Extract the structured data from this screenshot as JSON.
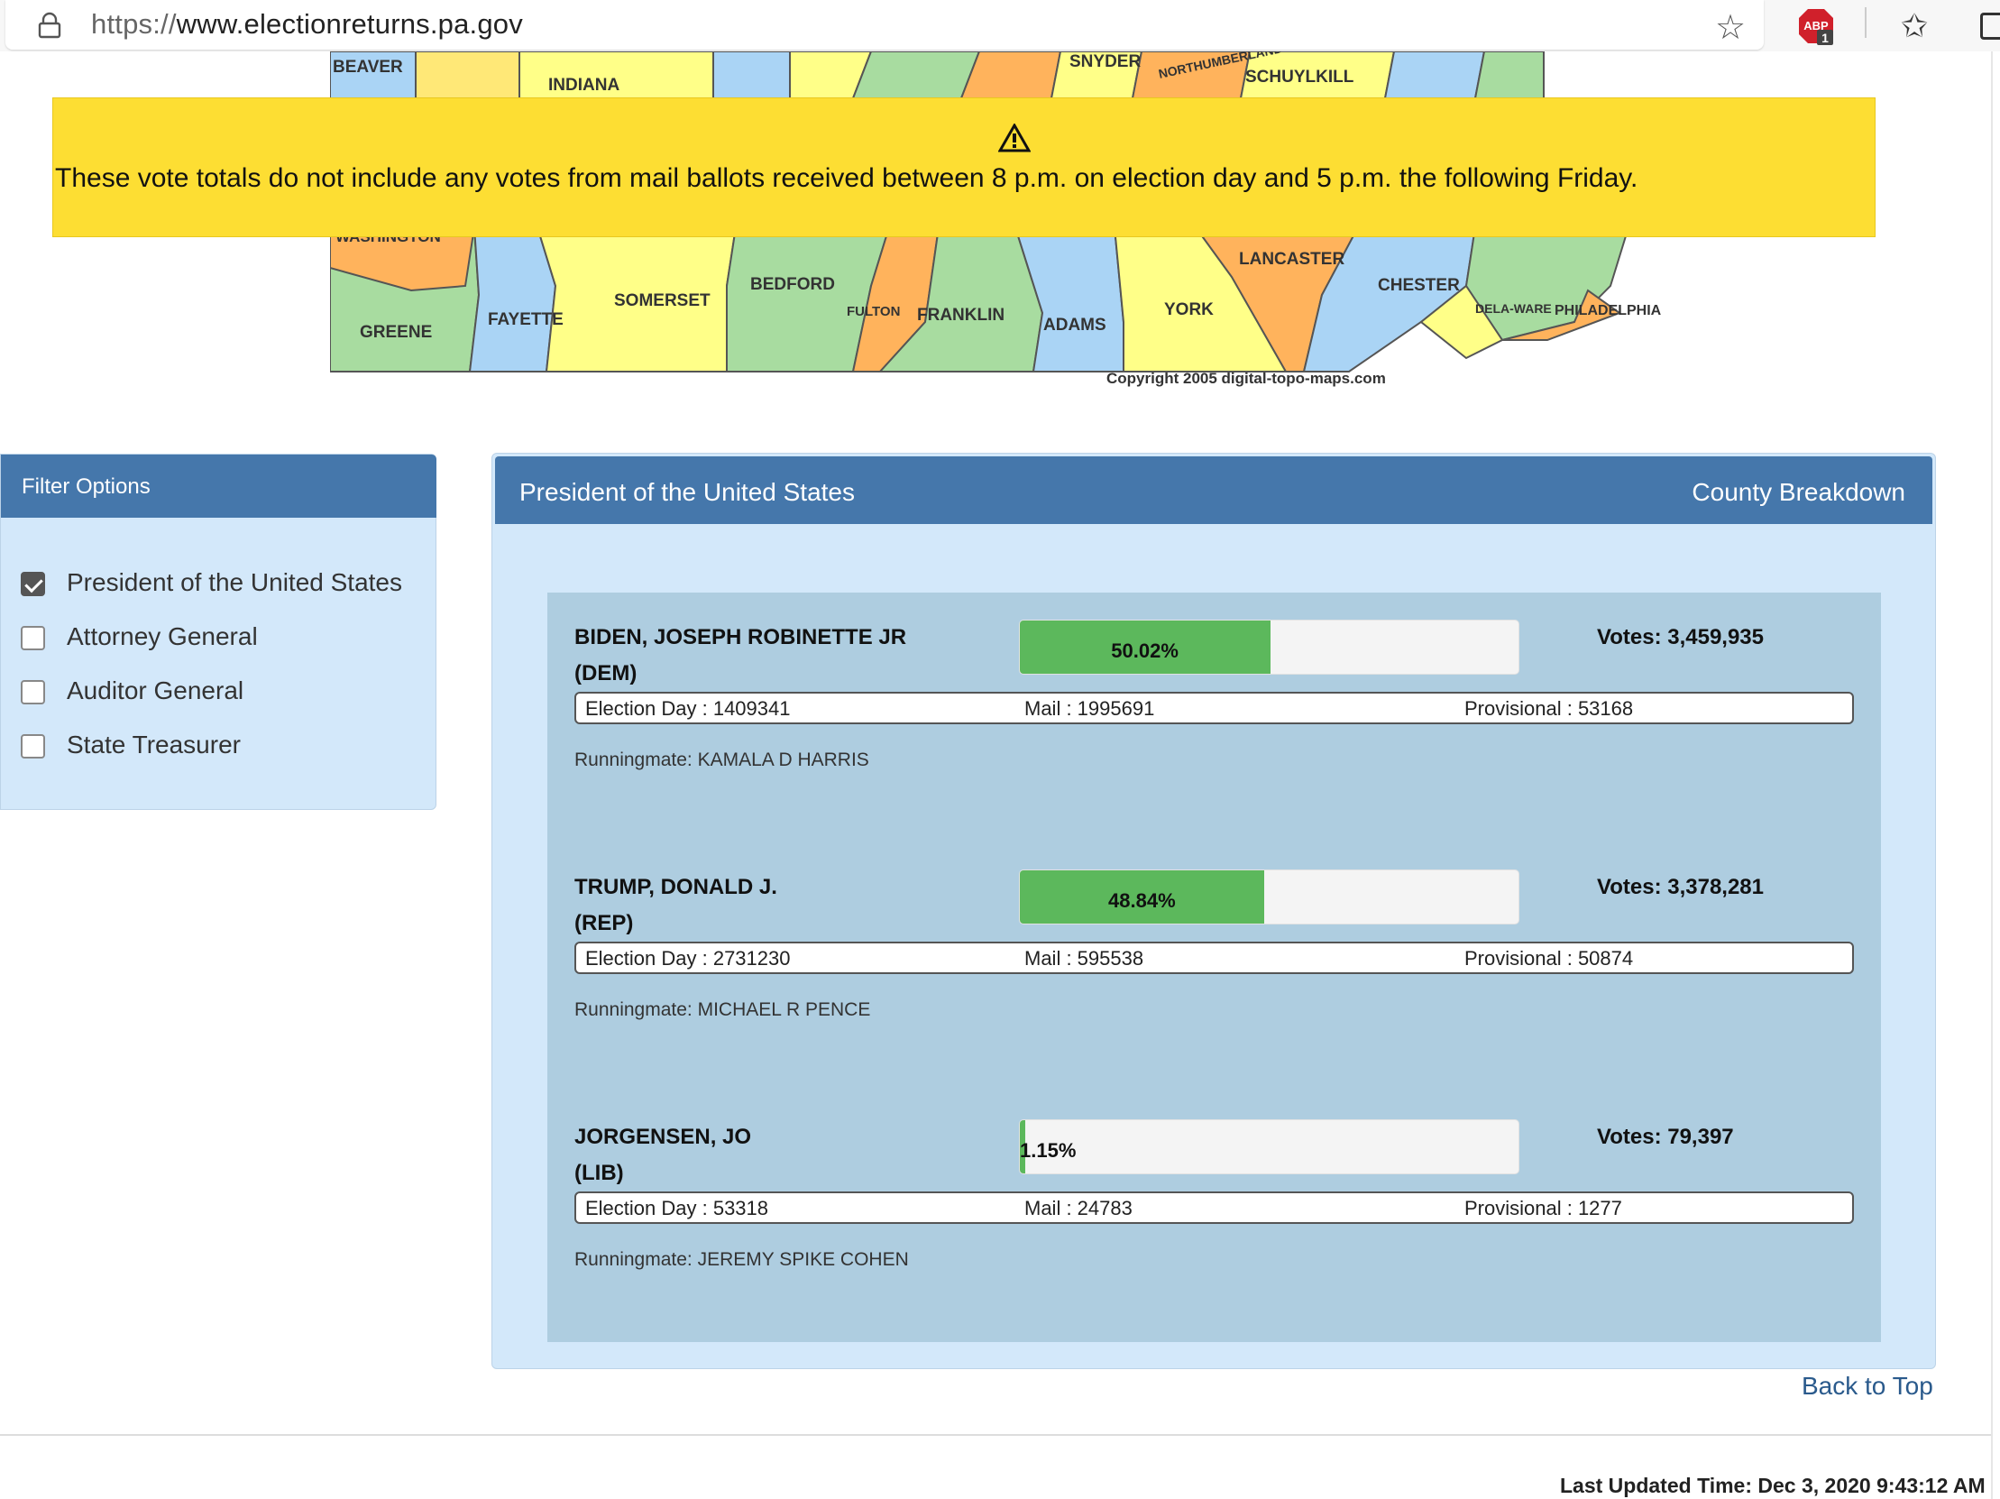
{
  "browser": {
    "url_scheme": "https://",
    "url_host": "www.electionreturns.pa.gov",
    "abp_label": "ABP",
    "abp_badge": "1"
  },
  "map": {
    "counties": [
      "BEAVER",
      "INDIANA",
      "SNYDER",
      "NORTHUMBERLAND",
      "SCHUYLKILL",
      "WASHINGTON",
      "GREENE",
      "FAYETTE",
      "SOMERSET",
      "BEDFORD",
      "FULTON",
      "FRANKLIN",
      "ADAMS",
      "YORK",
      "LANCASTER",
      "CHESTER",
      "DELA-WARE",
      "PHILADELPHIA"
    ],
    "copyright": "Copyright 2005 digital-topo-maps.com"
  },
  "warning": {
    "text": "These vote totals do not include any votes from mail ballots received between 8 p.m. on election day and 5 p.m. the following Friday."
  },
  "filter": {
    "title": "Filter Options",
    "options": [
      {
        "label": "President of the United States",
        "checked": true
      },
      {
        "label": "Attorney General",
        "checked": false
      },
      {
        "label": "Auditor General",
        "checked": false
      },
      {
        "label": "State Treasurer",
        "checked": false
      }
    ]
  },
  "results": {
    "office": "President of the United States",
    "county_breakdown": "County Breakdown",
    "candidates": [
      {
        "name": "BIDEN, JOSEPH ROBINETTE JR",
        "party": "(DEM)",
        "percent_label": "50.02%",
        "percent": 50.02,
        "votes": "Votes: 3,459,935",
        "election_day": "Election Day : 1409341",
        "mail": "Mail : 1995691",
        "provisional": "Provisional : 53168",
        "runningmate": "Runningmate: KAMALA D HARRIS"
      },
      {
        "name": "TRUMP, DONALD J.",
        "party": "(REP)",
        "percent_label": "48.84%",
        "percent": 48.84,
        "votes": "Votes: 3,378,281",
        "election_day": "Election Day : 2731230",
        "mail": "Mail : 595538",
        "provisional": "Provisional : 50874",
        "runningmate": "Runningmate: MICHAEL R PENCE"
      },
      {
        "name": "JORGENSEN, JO",
        "party": "(LIB)",
        "percent_label": "1.15%",
        "percent": 1.15,
        "votes": "Votes: 79,397",
        "election_day": "Election Day : 53318",
        "mail": "Mail : 24783",
        "provisional": "Provisional : 1277",
        "runningmate": "Runningmate: JEREMY SPIKE COHEN"
      }
    ]
  },
  "footer": {
    "back_to_top": "Back to Top",
    "last_updated": "Last Updated Time: Dec 3, 2020 9:43:12 AM"
  },
  "colors": {
    "header_blue": "#4577ab",
    "panel_bg": "#d3e8fa",
    "candidates_bg": "#aecde0",
    "bar_green": "#5cb85c",
    "warning_yellow": "#fdde33"
  }
}
